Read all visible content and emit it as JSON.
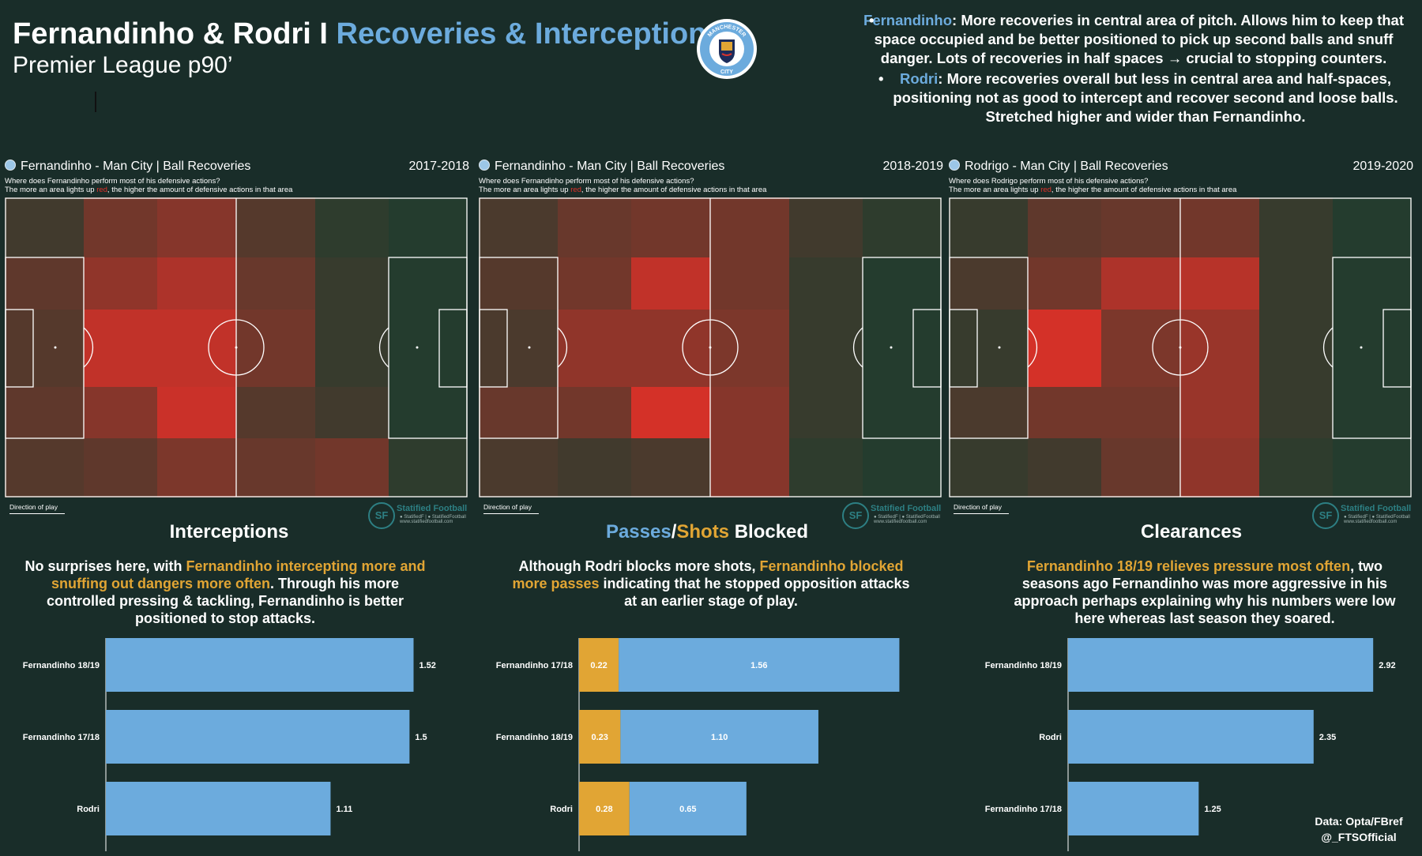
{
  "header": {
    "title_main": "Fernandinho & Rodri I ",
    "title_accent": "Recoveries & Interceptions",
    "subtitle": "Premier League p90’",
    "crest_text_top": "MANCHESTER",
    "crest_text_bottom": "CITY"
  },
  "notes": [
    {
      "name": "Fernandinho",
      "text": ": More recoveries in central area of pitch. Allows him to keep that space occupied and be better positioned to pick up second balls and snuff danger. Lots of recoveries in half spaces → crucial to stopping counters."
    },
    {
      "name": "Rodri",
      "text": ": More recoveries overall but less in central area and half-spaces, positioning not as good to intercept and recover second and loose balls. Stretched higher and wider than Fernandinho."
    }
  ],
  "colors": {
    "background": "#192d29",
    "accent_blue": "#6cabdd",
    "gold": "#e1a534",
    "heat_red": "#e0312a",
    "heat_green": "#1a3d2e"
  },
  "heatmaps": {
    "subtitle_q": "Where does Fernandinho perform most of his defensive actions?",
    "subtitle_q_rodri": "Where does Rodrigo perform most of his defensive actions?",
    "legend_a": "The more an area lights up ",
    "legend_red": "red",
    "legend_b": ", the higher the amount of defensive actions in that area",
    "direction_label": "Direction of play",
    "brand_name": "Statified Football",
    "brand_handles": "● StatifiedF | ● StatifiedFootball",
    "brand_url": "www.statifiedfootball.com",
    "brand_initials": "SF"
  },
  "chart_data": [
    {
      "type": "heatmap",
      "title": "Fernandinho - Man City | Ball Recoveries",
      "season": "2017-2018",
      "rows": [
        "wide-left",
        "left-half-space",
        "central",
        "right-half-space",
        "wide-right"
      ],
      "columns": 6,
      "values": [
        [
          0.2,
          0.45,
          0.55,
          0.3,
          0.1,
          0.05
        ],
        [
          0.35,
          0.6,
          0.75,
          0.4,
          0.15,
          0.05
        ],
        [
          0.3,
          0.85,
          0.85,
          0.45,
          0.15,
          0.05
        ],
        [
          0.35,
          0.55,
          0.9,
          0.3,
          0.2,
          0.05
        ],
        [
          0.3,
          0.35,
          0.5,
          0.4,
          0.45,
          0.1
        ]
      ]
    },
    {
      "type": "heatmap",
      "title": "Fernandinho - Man City | Ball Recoveries",
      "season": "2018-2019",
      "rows": [
        "wide-left",
        "left-half-space",
        "central",
        "right-half-space",
        "wide-right"
      ],
      "columns": 6,
      "values": [
        [
          0.25,
          0.4,
          0.45,
          0.45,
          0.2,
          0.1
        ],
        [
          0.3,
          0.45,
          0.85,
          0.45,
          0.15,
          0.05
        ],
        [
          0.25,
          0.6,
          0.6,
          0.5,
          0.15,
          0.05
        ],
        [
          0.4,
          0.45,
          0.95,
          0.55,
          0.15,
          0.05
        ],
        [
          0.25,
          0.2,
          0.25,
          0.55,
          0.1,
          0.05
        ]
      ]
    },
    {
      "type": "heatmap",
      "title": "Rodrigo - Man City | Ball Recoveries",
      "season": "2019-2020",
      "rows": [
        "wide-left",
        "left-half-space",
        "central",
        "right-half-space",
        "wide-right"
      ],
      "columns": 6,
      "values": [
        [
          0.15,
          0.35,
          0.4,
          0.45,
          0.15,
          0.05
        ],
        [
          0.25,
          0.45,
          0.75,
          0.8,
          0.15,
          0.05
        ],
        [
          0.15,
          0.95,
          0.5,
          0.65,
          0.15,
          0.05
        ],
        [
          0.25,
          0.45,
          0.45,
          0.65,
          0.15,
          0.05
        ],
        [
          0.15,
          0.2,
          0.4,
          0.6,
          0.1,
          0.05
        ]
      ]
    },
    {
      "type": "bar",
      "title": "Interceptions",
      "description_plain_1": "No surprises here, with ",
      "description_gold": "Fernandinho intercepting more and snuffing out dangers more often",
      "description_plain_2": ". Through his more controlled pressing & tackling, Fernandinho is better positioned to stop attacks.",
      "categories": [
        "Fernandinho 18/19",
        "Fernandinho 17/18",
        "Rodri"
      ],
      "values": [
        1.52,
        1.5,
        1.11
      ],
      "value_labels": [
        "1.52",
        "1.5",
        "1.11"
      ],
      "xlim": [
        0,
        1.6
      ]
    },
    {
      "type": "bar",
      "stacked": true,
      "title_passes": "Passes",
      "title_slash": "/",
      "title_shots": "Shots",
      "title_rest": " Blocked",
      "description_plain_1": "Although Rodri blocks more shots, ",
      "description_gold": "Fernandinho blocked more passes",
      "description_plain_2": " indicating that he stopped opposition attacks at an earlier stage of play.",
      "categories": [
        "Fernandinho 17/18",
        "Fernandinho 18/19",
        "Rodri"
      ],
      "series": [
        {
          "name": "Shots",
          "values": [
            0.22,
            0.23,
            0.28
          ],
          "labels": [
            "0.22",
            "0.23",
            "0.28"
          ],
          "color": "#e1a534"
        },
        {
          "name": "Passes",
          "values": [
            1.56,
            1.1,
            0.65
          ],
          "labels": [
            "1.56",
            "1.10",
            "0.65"
          ],
          "color": "#6cabdd"
        }
      ],
      "xlim": [
        0,
        1.8
      ]
    },
    {
      "type": "bar",
      "title": "Clearances",
      "description_gold": "Fernandinho 18/19 relieves pressure most often",
      "description_plain_2": ", two seasons ago Fernandinho was more aggressive in his approach perhaps explaining why his numbers were low here whereas last season they soared.",
      "categories": [
        "Fernandinho 18/19",
        "Rodri",
        "Fernandinho 17/18"
      ],
      "values": [
        2.92,
        2.35,
        1.25
      ],
      "value_labels": [
        "2.92",
        "2.35",
        "1.25"
      ],
      "xlim": [
        0,
        3.1
      ]
    }
  ],
  "footer": {
    "source": "Data: Opta/FBref",
    "handle": "@_FTSOfficial"
  }
}
